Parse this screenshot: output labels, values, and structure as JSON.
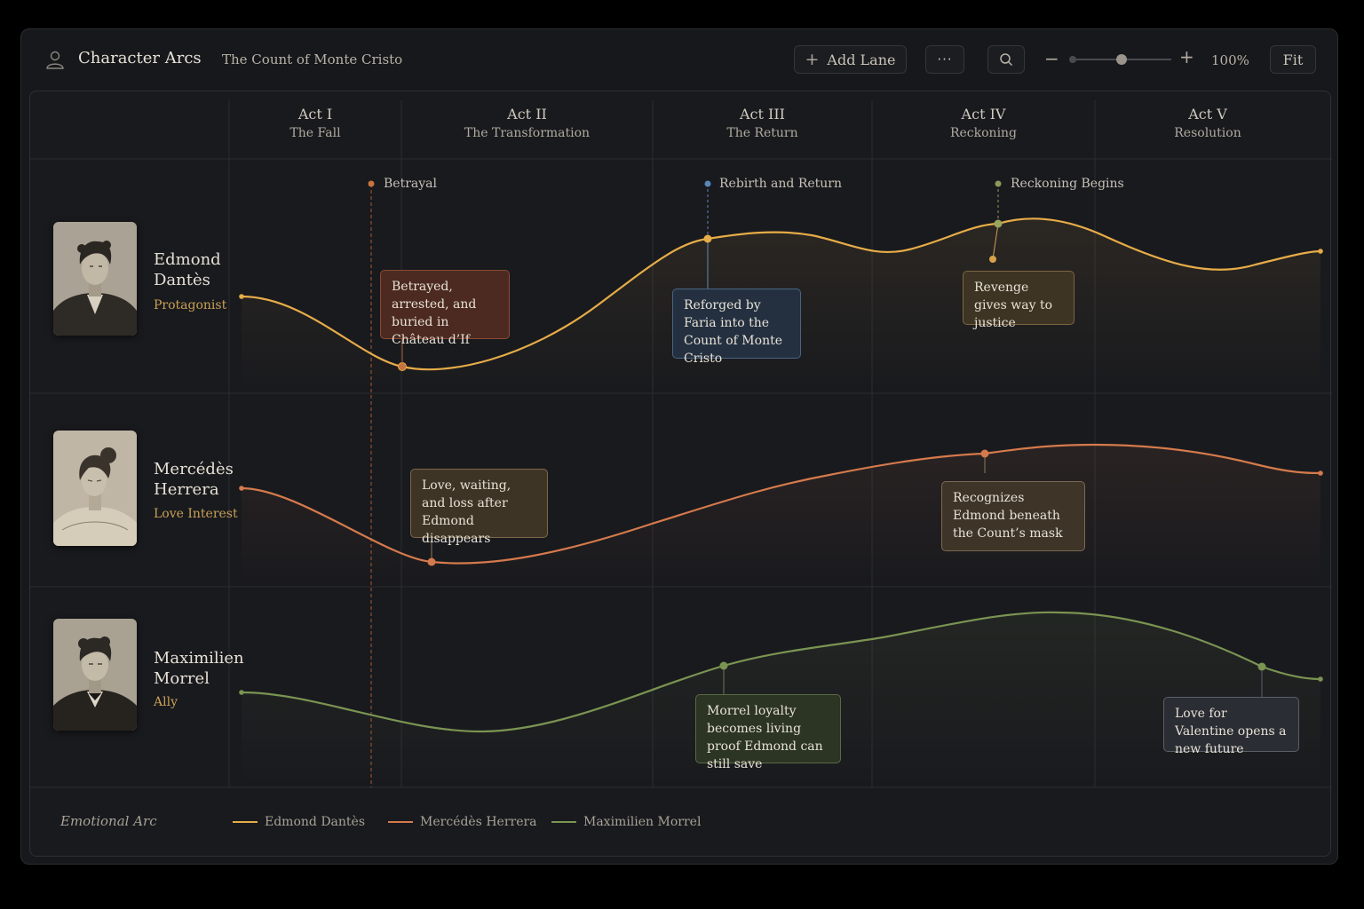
{
  "header": {
    "app_title": "Character Arcs",
    "document_title": "The Count of Monte Cristo",
    "add_lane_label": "Add Lane",
    "more_label": "···",
    "zoom_level": "100%",
    "zoom_value": 0.5,
    "fit_label": "Fit"
  },
  "acts": [
    {
      "num": "Act I",
      "sub": "The Fall"
    },
    {
      "num": "Act II",
      "sub": "The Transformation"
    },
    {
      "num": "Act III",
      "sub": "The Return"
    },
    {
      "num": "Act IV",
      "sub": "Reckoning"
    },
    {
      "num": "Act V",
      "sub": "Resolution"
    }
  ],
  "milestones": [
    {
      "label": "Betrayal",
      "color": "#c8733f"
    },
    {
      "label": "Rebirth and Return",
      "color": "#5a86b8"
    },
    {
      "label": "Reckoning Begins",
      "color": "#8a9a5a"
    }
  ],
  "characters": [
    {
      "name": "Edmond Dantès",
      "role": "Protagonist",
      "color": "#e6ac48"
    },
    {
      "name": "Mercédès Herrera",
      "role": "Love Interest",
      "color": "#d57a4c"
    },
    {
      "name": "Maximilien Morrel",
      "role": "Ally",
      "color": "#7b9452"
    }
  ],
  "callouts": [
    {
      "text": "Betrayed, arrested, and buried in Château d’If"
    },
    {
      "text": "Reforged by Faria into the Count of Monte Cristo"
    },
    {
      "text": "Revenge gives way to justice"
    },
    {
      "text": "Love, waiting, and loss after Edmond disappears"
    },
    {
      "text": "Recognizes Edmond beneath the Count’s mask"
    },
    {
      "text": "Morrel loyalty becomes living proof Edmond can still save"
    },
    {
      "text": "Love for Valentine opens a new future"
    }
  ],
  "legend": {
    "title": "Emotional Arc",
    "items": [
      "Edmond Dantès",
      "Mercédès Herrera",
      "Maximilien Morrel"
    ]
  }
}
